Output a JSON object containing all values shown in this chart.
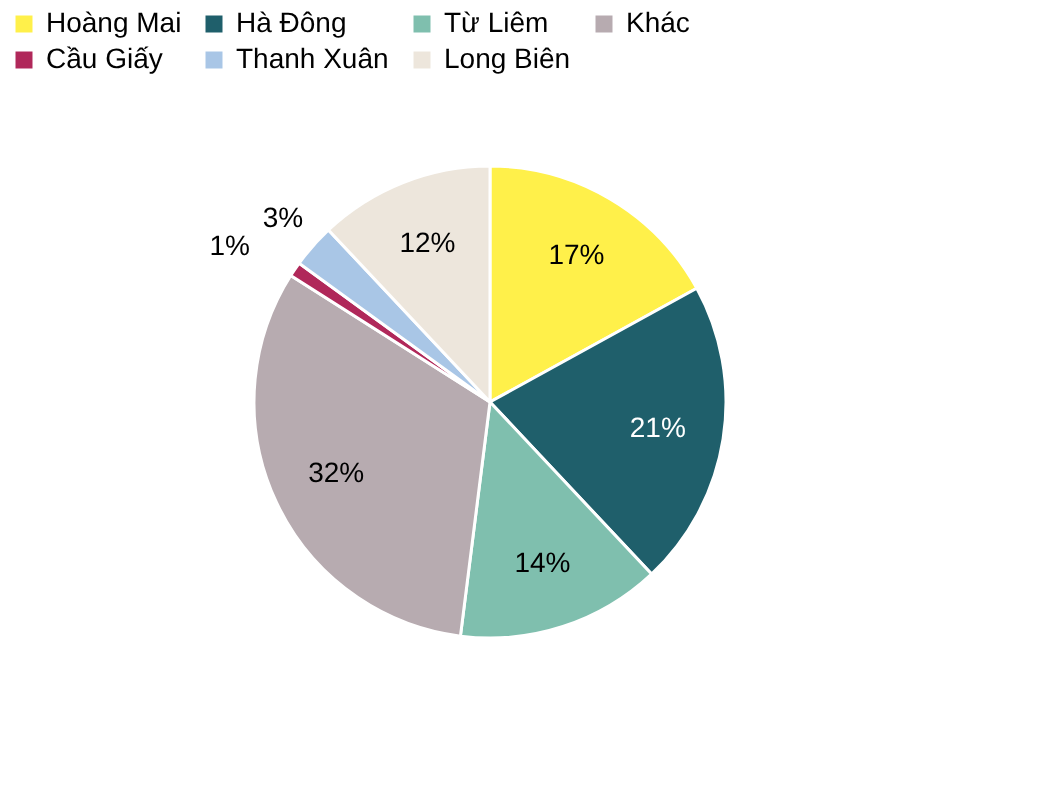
{
  "chart_data": {
    "type": "pie",
    "categories": [
      "Hoàng Mai",
      "Hà Đông",
      "Từ Liêm",
      "Khác",
      "Cầu Giấy",
      "Thanh Xuân",
      "Long Biên"
    ],
    "values": [
      17,
      21,
      14,
      32,
      1,
      3,
      12
    ],
    "value_labels": [
      "17%",
      "21%",
      "14%",
      "32%",
      "1%",
      "3%",
      "12%"
    ],
    "colors": [
      "#fff04a",
      "#1f5f6b",
      "#7fbfae",
      "#b7abb0",
      "#b0285a",
      "#a9c6e6",
      "#ede6dc"
    ],
    "legend": "top"
  }
}
